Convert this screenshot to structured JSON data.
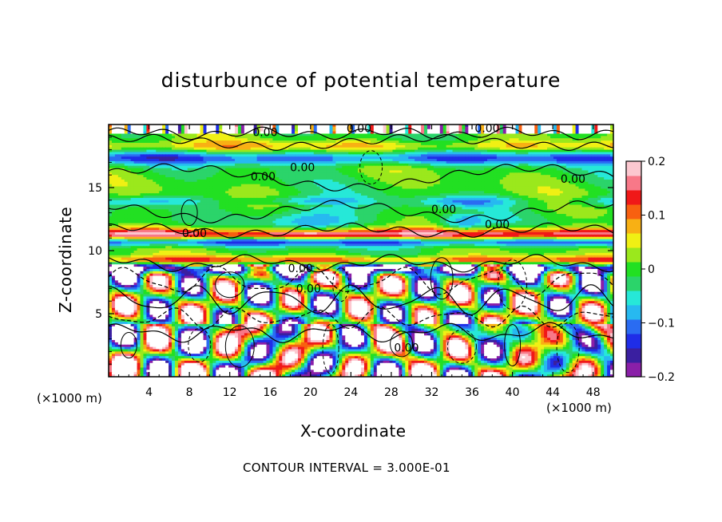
{
  "chart_data": {
    "type": "heatmap",
    "title": "disturbunce of potential temperature",
    "xlabel": "X-coordinate",
    "ylabel": "Z-coordinate",
    "x_unit_left": "(×1000 m)",
    "x_unit_right": "(×1000 m)",
    "xlim": [
      0,
      50
    ],
    "ylim": [
      0,
      20
    ],
    "x_ticks": [
      4,
      8,
      12,
      16,
      20,
      24,
      28,
      32,
      36,
      40,
      44,
      48
    ],
    "x_tick_labels": [
      "4",
      "8",
      "12",
      "16",
      "20",
      "24",
      "28",
      "32",
      "36",
      "40",
      "44",
      "48"
    ],
    "y_ticks": [
      5,
      10,
      15
    ],
    "y_tick_labels": [
      "5",
      "10",
      "15"
    ],
    "colorbar": {
      "range": [
        -0.2,
        0.2
      ],
      "ticks": [
        0.2,
        0.1,
        0,
        -0.1,
        -0.2
      ],
      "tick_labels": [
        "0.2",
        "0.1",
        "0",
        "−0.1",
        "−0.2"
      ],
      "colors": [
        "#8a1fa8",
        "#3a1fa0",
        "#1f2de8",
        "#2a6cf2",
        "#27b9f0",
        "#26e8d8",
        "#2bd46a",
        "#22e022",
        "#9be81c",
        "#f0f014",
        "#f8b014",
        "#f86010",
        "#f01818",
        "#f87888",
        "#fcc8d0"
      ]
    },
    "contour_interval_text": "CONTOUR INTERVAL = 3.000E-01",
    "contour_labels": [
      {
        "text": "0.00",
        "x": 15.5,
        "z": 19.4
      },
      {
        "text": "0.00",
        "x": 24.8,
        "z": 19.7
      },
      {
        "text": "0.00",
        "x": 37.5,
        "z": 19.7
      },
      {
        "text": "0.00",
        "x": 15.3,
        "z": 15.9
      },
      {
        "text": "0.00",
        "x": 19.2,
        "z": 16.6
      },
      {
        "text": "0.00",
        "x": 46.0,
        "z": 15.7
      },
      {
        "text": "0.00",
        "x": 33.2,
        "z": 13.3
      },
      {
        "text": "0.00",
        "x": 38.5,
        "z": 12.1
      },
      {
        "text": "0.00",
        "x": 8.5,
        "z": 11.4
      },
      {
        "text": "0.00",
        "x": 19.0,
        "z": 8.6
      },
      {
        "text": "0.00",
        "x": 19.8,
        "z": 7.0
      },
      {
        "text": "0.00",
        "x": 29.5,
        "z": 2.3
      }
    ]
  }
}
